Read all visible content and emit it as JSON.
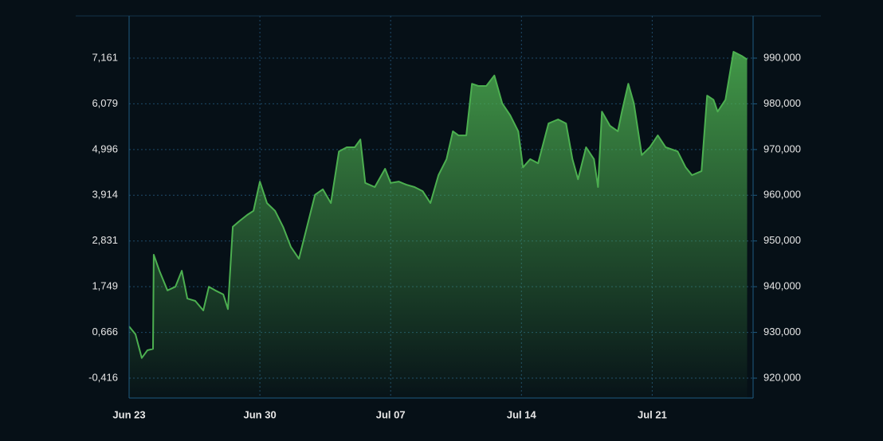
{
  "chart_data": {
    "type": "area",
    "x": [
      0,
      0.34,
      0.68,
      0.98,
      1.28,
      1.32,
      1.62,
      2.05,
      2.48,
      2.82,
      3.12,
      3.54,
      3.97,
      4.27,
      4.61,
      5.04,
      5.29,
      5.55,
      5.89,
      6.32,
      6.66,
      7.0,
      7.38,
      7.81,
      8.24,
      8.66,
      9.09,
      9.52,
      9.95,
      10.37,
      10.8,
      11.23,
      11.65,
      12.08,
      12.38,
      12.64,
      13.15,
      13.7,
      14.0,
      14.43,
      14.85,
      15.28,
      15.71,
      16.13,
      16.56,
      16.99,
      17.33,
      17.63,
      18.05,
      18.35,
      18.69,
      19.12,
      19.55,
      19.97,
      20.4,
      20.83,
      21.08,
      21.47,
      21.89,
      22.45,
      22.96,
      23.39,
      23.73,
      24.03,
      24.46,
      24.88,
      25.1,
      25.31,
      25.74,
      26.16,
      26.38,
      26.72,
      27.02,
      27.44,
      27.87,
      28.3,
      28.72,
      29.36,
      29.79,
      30.13,
      30.64,
      30.94,
      31.28,
      31.5,
      31.92,
      32.35,
      32.78,
      33.08
    ],
    "series": [
      {
        "color": "#4caf50",
        "axis": "y2",
        "values": [
          931300,
          929600,
          924400,
          926100,
          926400,
          947000,
          943500,
          939200,
          940000,
          943500,
          937400,
          936900,
          934800,
          940000,
          939200,
          938300,
          935100,
          953100,
          954300,
          955700,
          956600,
          963000,
          958300,
          956600,
          953100,
          948700,
          946100,
          953100,
          960100,
          961300,
          958300,
          969600,
          970500,
          970500,
          972200,
          962700,
          961800,
          965800,
          962700,
          963000,
          962300,
          961800,
          960900,
          958300,
          964400,
          967900,
          974000,
          973100,
          973100,
          984400,
          983900,
          983900,
          986200,
          980100,
          977500,
          974000,
          966100,
          967900,
          967000,
          975700,
          976600,
          975700,
          967900,
          963500,
          970500,
          967900,
          961800,
          978300,
          975200,
          974000,
          978300,
          984400,
          980100,
          968800,
          970500,
          973100,
          970500,
          969600,
          966100,
          964400,
          965300,
          981800,
          980900,
          978300,
          980900,
          991400,
          990500,
          989700
        ]
      }
    ],
    "xlim": [
      0,
      33.4
    ],
    "xticks": [
      {
        "value": 0,
        "label": "Jun 23"
      },
      {
        "value": 7,
        "label": "Jun 30"
      },
      {
        "value": 14,
        "label": "Jul 07"
      },
      {
        "value": 21,
        "label": "Jul 14"
      },
      {
        "value": 28,
        "label": "Jul 21"
      }
    ],
    "ylim": [
      -0.887,
      8.16
    ],
    "yticks": [
      {
        "value": -0.416,
        "label": "-0,416"
      },
      {
        "value": 0.666,
        "label": "0,666"
      },
      {
        "value": 1.749,
        "label": "1,749"
      },
      {
        "value": 2.831,
        "label": "2,831"
      },
      {
        "value": 3.914,
        "label": "3,914"
      },
      {
        "value": 4.996,
        "label": "4,996"
      },
      {
        "value": 6.079,
        "label": "6,079"
      },
      {
        "value": 7.161,
        "label": "7,161"
      }
    ],
    "y2lim": [
      915650,
      999230
    ],
    "y2ticks": [
      {
        "value": 920000,
        "label": "920,000"
      },
      {
        "value": 930000,
        "label": "930,000"
      },
      {
        "value": 940000,
        "label": "940,000"
      },
      {
        "value": 950000,
        "label": "950,000"
      },
      {
        "value": 960000,
        "label": "960,000"
      },
      {
        "value": 970000,
        "label": "970,000"
      },
      {
        "value": 980000,
        "label": "980,000"
      },
      {
        "value": 990000,
        "label": "990,000"
      }
    ],
    "grid": true
  }
}
